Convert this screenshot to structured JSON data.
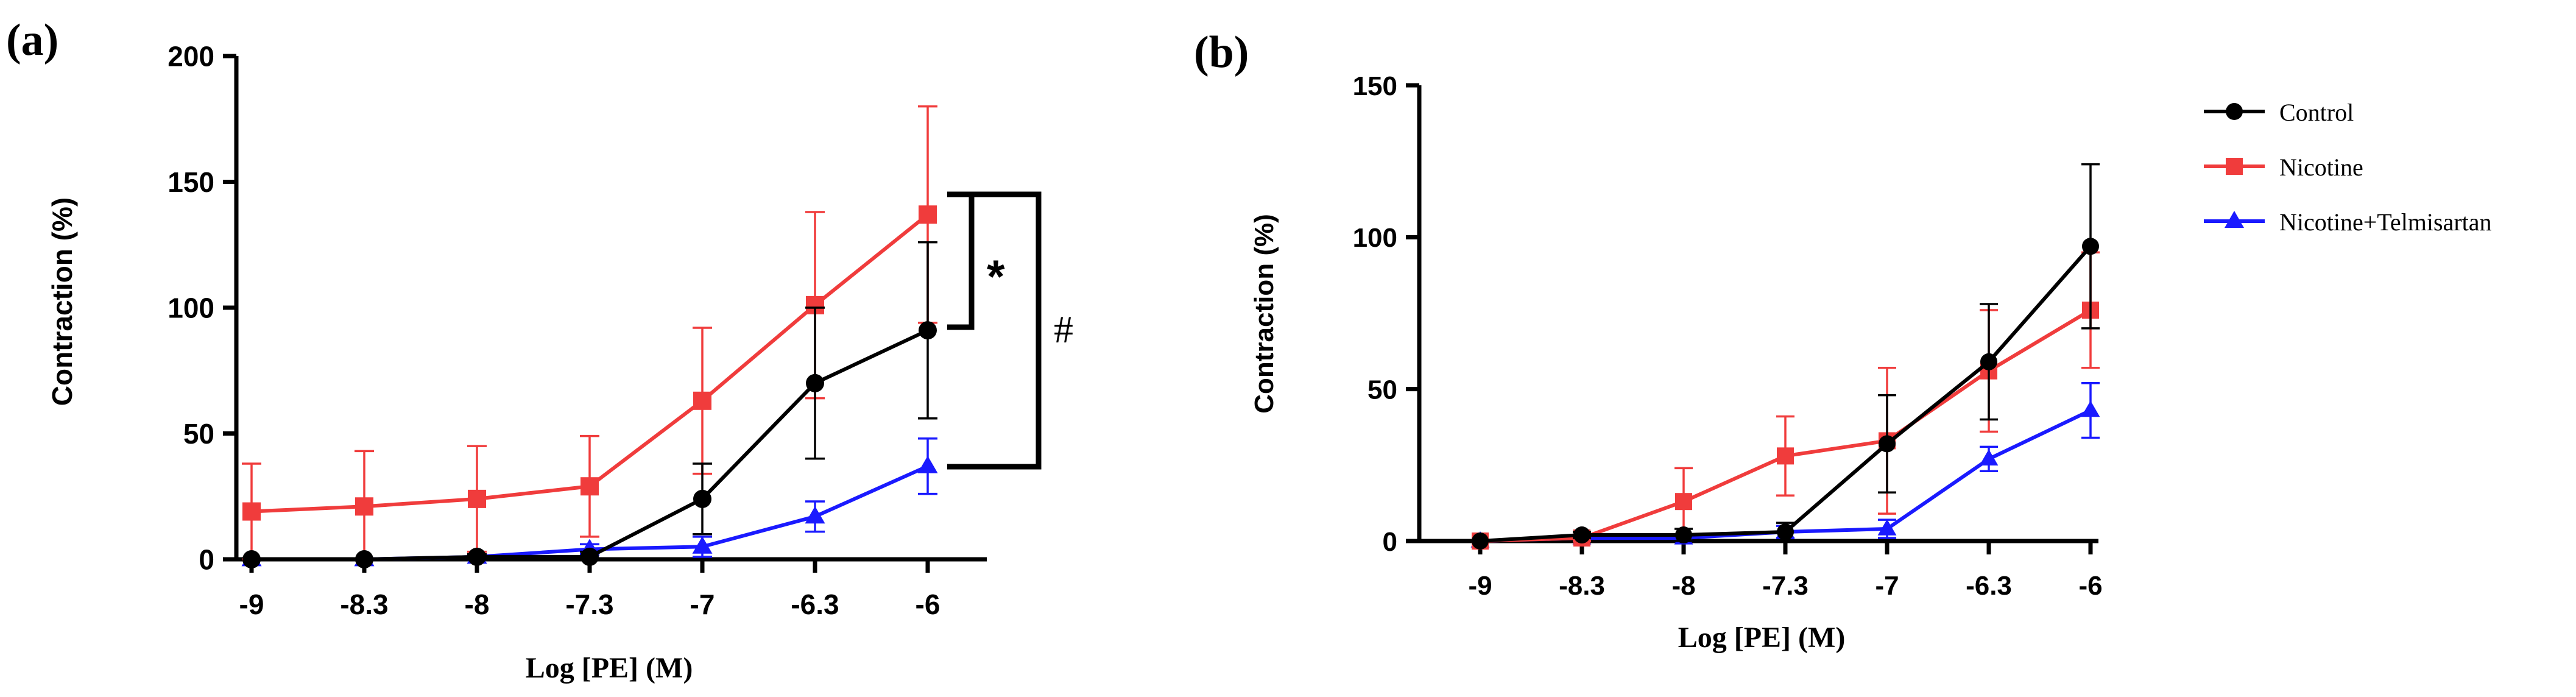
{
  "colors": {
    "control": "#000000",
    "nicotine": "#f03c3c",
    "telmisartan": "#1a1aff"
  },
  "legend": {
    "items": [
      {
        "label": "Control",
        "marker": "circle",
        "color": "#000000"
      },
      {
        "label": "Nicotine",
        "marker": "square",
        "color": "#f03c3c"
      },
      {
        "label": "Nicotine+Telmisartan",
        "marker": "triangle",
        "color": "#1a1aff"
      }
    ]
  },
  "chart_data": [
    {
      "panel_label": "(a)",
      "type": "line",
      "xlabel": "Log [PE] (M)",
      "ylabel": "Contraction (%)",
      "x": [
        "-9",
        "-8.3",
        "-8",
        "-7.3",
        "-7",
        "-6.3",
        "-6"
      ],
      "ylim": [
        0,
        200
      ],
      "yticks": [
        "0",
        "50",
        "100",
        "150",
        "200"
      ],
      "series": [
        {
          "name": "Nicotine",
          "marker": "square",
          "color": "#f03c3c",
          "values": [
            19,
            21,
            24,
            29,
            63,
            101,
            137
          ],
          "errors": [
            19,
            22,
            21,
            20,
            29,
            37,
            43
          ]
        },
        {
          "name": "Control",
          "marker": "circle",
          "color": "#000000",
          "values": [
            0,
            0,
            1,
            1,
            24,
            70,
            91
          ],
          "errors": [
            0,
            0,
            1,
            2,
            14,
            30,
            35
          ]
        },
        {
          "name": "Nicotine+Telmisartan",
          "marker": "triangle",
          "color": "#1a1aff",
          "values": [
            0,
            0,
            1,
            4,
            5,
            17,
            37
          ],
          "errors": [
            0,
            0,
            1,
            2,
            4,
            6,
            11
          ]
        }
      ],
      "annotations": [
        "*",
        "#"
      ]
    },
    {
      "panel_label": "(b)",
      "type": "line",
      "xlabel": "Log [PE] (M)",
      "ylabel": "Contraction (%)",
      "x": [
        "-9",
        "-8.3",
        "-8",
        "-7.3",
        "-7",
        "-6.3",
        "-6"
      ],
      "ylim": [
        0,
        150
      ],
      "yticks": [
        "0",
        "50",
        "100",
        "150"
      ],
      "series": [
        {
          "name": "Nicotine",
          "marker": "square",
          "color": "#f03c3c",
          "values": [
            0,
            1,
            13,
            28,
            33,
            56,
            76
          ],
          "errors": [
            0,
            1,
            11,
            13,
            24,
            20,
            19
          ]
        },
        {
          "name": "Control",
          "marker": "circle",
          "color": "#000000",
          "values": [
            0,
            2,
            2,
            3,
            32,
            59,
            97
          ],
          "errors": [
            0,
            1,
            2,
            3,
            16,
            19,
            27
          ]
        },
        {
          "name": "Nicotine+Telmisartan",
          "marker": "triangle",
          "color": "#1a1aff",
          "values": [
            0,
            1,
            1,
            3,
            4,
            27,
            43
          ],
          "errors": [
            0,
            1,
            1,
            2,
            3,
            4,
            9
          ]
        }
      ]
    }
  ]
}
